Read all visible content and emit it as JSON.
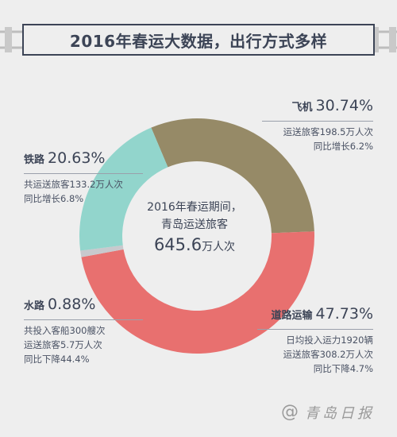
{
  "title": "2016年春运大数据，出行方式多样",
  "center": {
    "line1": "2016年春运期间，",
    "line2": "青岛运送旅客",
    "total": "645.6",
    "unit": "万人次"
  },
  "annotations": {
    "air": {
      "name": "飞机",
      "pct": "30.74%",
      "lines": [
        "运送旅客198.5万人次",
        "同比增长6.2%"
      ]
    },
    "rail": {
      "name": "铁路",
      "pct": "20.63%",
      "lines": [
        "共运送旅客133.2万人次",
        "同比增长6.8%"
      ]
    },
    "water": {
      "name": "水路",
      "pct": "0.88%",
      "lines": [
        "共投入客船300艘次",
        "运送旅客5.7万人次",
        "同比下降44.4%"
      ]
    },
    "road": {
      "name": "道路运输",
      "pct": "47.73%",
      "lines": [
        "日均投入运力1920辆",
        "运送旅客308.2万人次",
        "同比下降4.7%"
      ]
    }
  },
  "footer": {
    "icon": "at-icon",
    "text": "青岛日报"
  },
  "colors": {
    "air": "#968a67",
    "road": "#e8706f",
    "water": "#c8c9cd",
    "rail": "#92d5cc",
    "text": "#3c4456",
    "background": "#eeeeee"
  },
  "chart_data": {
    "type": "pie",
    "donut": true,
    "categories": [
      "飞机",
      "道路运输",
      "水路",
      "铁路"
    ],
    "values": [
      30.74,
      47.73,
      0.88,
      20.63
    ],
    "unit": "%",
    "slice_colors": [
      "#968a67",
      "#e8706f",
      "#c8c9cd",
      "#92d5cc"
    ],
    "center_label": "645.6万人次"
  }
}
